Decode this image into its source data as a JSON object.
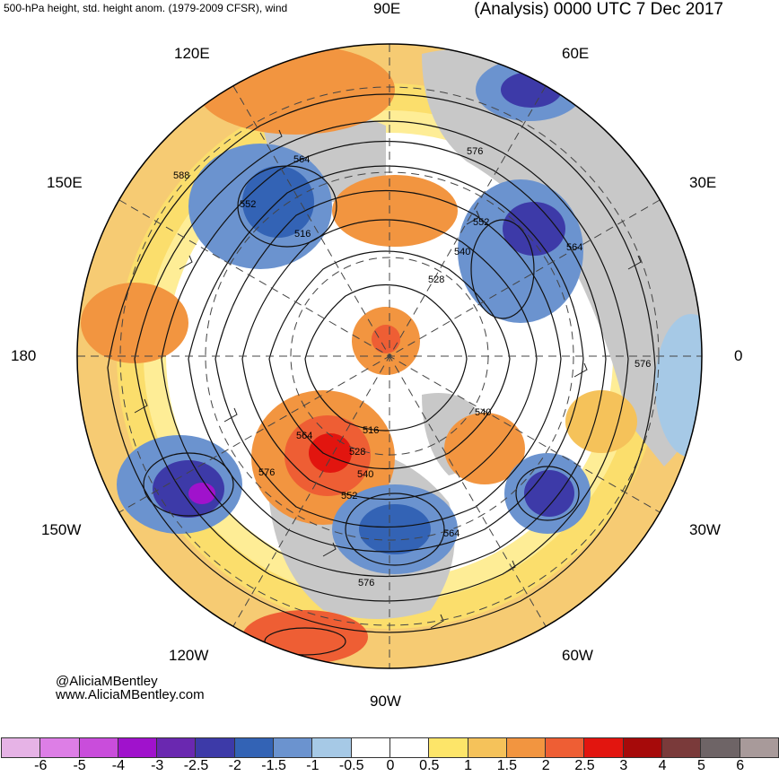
{
  "header": {
    "left_title": "500-hPa height, std. height anom. (1979-2009 CFSR), wind",
    "right_title": "(Analysis) 0000 UTC 7 Dec 2017"
  },
  "longitude_labels": {
    "lon_90e": "90E",
    "lon_120e": "120E",
    "lon_60e": "60E",
    "lon_150e": "150E",
    "lon_30e": "30E",
    "lon_180": "180",
    "lon_0": "0",
    "lon_150w": "150W",
    "lon_30w": "30W",
    "lon_120w": "120W",
    "lon_60w": "60W",
    "lon_90w": "90W"
  },
  "contour_labels": [
    "588",
    "564",
    "552",
    "516",
    "576",
    "552",
    "540",
    "528",
    "564",
    "576",
    "540",
    "564",
    "516",
    "528",
    "540",
    "576",
    "552",
    "564",
    "576"
  ],
  "credits": {
    "handle": "@AliciaMBentley",
    "website": "www.AliciaMBentley.com"
  },
  "colorbar": {
    "colors": [
      "#e6b3e6",
      "#dd7ee6",
      "#c94ddb",
      "#a012cc",
      "#6a28b0",
      "#3d3aa8",
      "#3363b5",
      "#6b93cf",
      "#a6c9e6",
      "#ffffff",
      "#ffffff",
      "#fde569",
      "#f5c25a",
      "#f29540",
      "#ee5e34",
      "#e2150f",
      "#a60a0a",
      "#7a3a3a",
      "#6e6466",
      "#a89a9a"
    ],
    "tick_labels": [
      "-6",
      "-5",
      "-4",
      "-3",
      "-2.5",
      "-2",
      "-1.5",
      "-1",
      "-0.5",
      "0",
      "0.5",
      "1",
      "1.5",
      "2",
      "2.5",
      "3",
      "4",
      "5",
      "6"
    ]
  }
}
